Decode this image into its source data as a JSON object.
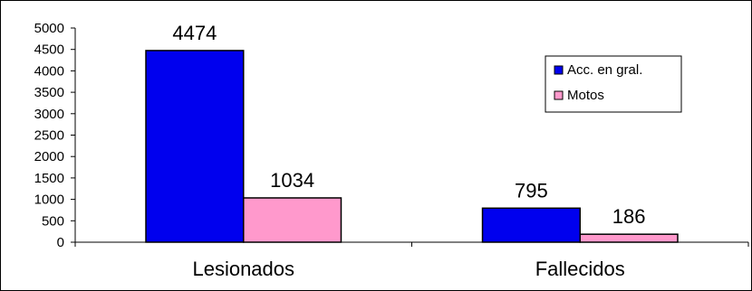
{
  "chart_data": {
    "type": "bar",
    "categories": [
      "Lesionados",
      "Fallecidos"
    ],
    "series": [
      {
        "name": "Acc. en gral.",
        "color": "#0000ee",
        "values": [
          4474,
          795
        ]
      },
      {
        "name": "Motos",
        "color": "#ff99cc",
        "values": [
          1034,
          186
        ]
      }
    ],
    "data_labels": [
      [
        "4474",
        "795"
      ],
      [
        "1034",
        "186"
      ]
    ],
    "title": "",
    "xlabel": "",
    "ylabel": "",
    "ylim": [
      0,
      5000
    ],
    "yticks": [
      0,
      500,
      1000,
      1500,
      2000,
      2500,
      3000,
      3500,
      4000,
      4500,
      5000
    ],
    "grid": false,
    "legend_position": "right"
  }
}
